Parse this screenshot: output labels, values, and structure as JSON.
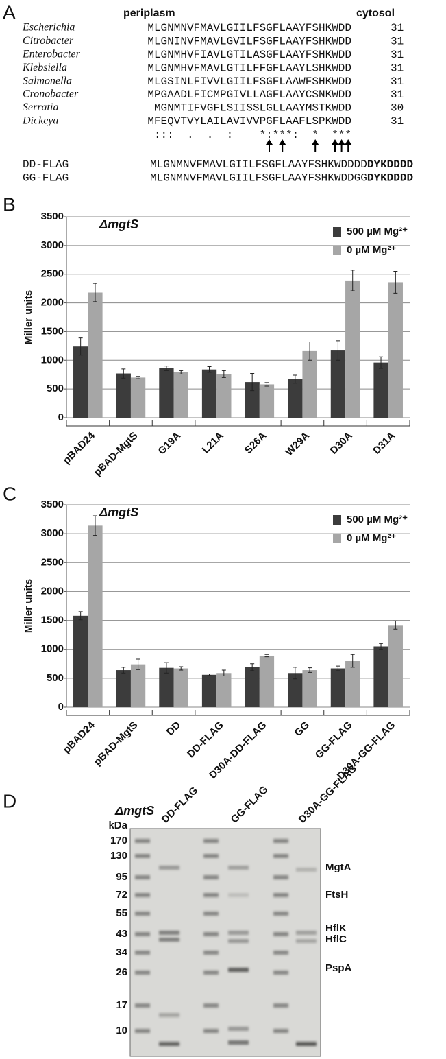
{
  "panel_a": {
    "label": "A",
    "periplasm": "periplasm",
    "cytosol": "cytosol",
    "rows": [
      {
        "organism": "Escherichia",
        "sequence": "MLGNMNVFMAVLGIILFSGFLAAYFSHKWDD",
        "length": 31
      },
      {
        "organism": "Citrobacter",
        "sequence": "MLGNINVFMAVLGVILFSGFLAAYFSHKWDD",
        "length": 31
      },
      {
        "organism": "Enterobacter",
        "sequence": "MLGNMHVFIAVLGTILASGFLAAYFSHKWDD",
        "length": 31
      },
      {
        "organism": "Klebsiella",
        "sequence": "MLGNMHVFMAVLGTILFFGFLAAYLSHKWDD",
        "length": 31
      },
      {
        "organism": "Salmonella",
        "sequence": "MLGSINLFIVVLGIILFSGFLAAWFSHKWDD",
        "length": 31
      },
      {
        "organism": "Cronobacter",
        "sequence": "MPGAADLFICMPGIVLLAGFLAAYCSNKWDD",
        "length": 31
      },
      {
        "organism": "Serratia",
        "sequence": "MGNMTIFVGFLSIISSLGLLAAYMSTKWDD",
        "length": 30
      },
      {
        "organism": "Dickeya",
        "sequence": "MFEQVTVYLAILAVIVVPGFLAAFLSPKWDD",
        "length": 31
      }
    ],
    "conservation": "   :::  .  .  :    *:***:  *  ***",
    "constructs": [
      {
        "name": "DD-FLAG",
        "sequence": "MLGNMNVFMAVLGIILFSGFLAAYFSHKWDDDD",
        "tag": "DYKDDDD"
      },
      {
        "name": "GG-FLAG",
        "sequence": "MLGNMNVFMAVLGIILFSGFLAAYFSHKWDDGG",
        "tag": "DYKDDDD"
      }
    ]
  },
  "chart_data": [
    {
      "type": "bar",
      "panel_label": "B",
      "title": "ΔmgtS",
      "y_label": "Miller units",
      "categories": [
        "pBAD24",
        "pBAD-MgtS",
        "G19A",
        "L21A",
        "S26A",
        "W29A",
        "D30A",
        "D31A"
      ],
      "series": [
        {
          "name": "500 µM Mg²⁺",
          "color": "#3c3c3c",
          "values": [
            1240,
            770,
            860,
            840,
            620,
            670,
            1170,
            960
          ],
          "errors": [
            150,
            80,
            40,
            50,
            150,
            70,
            170,
            100
          ]
        },
        {
          "name": "0 µM Mg²⁺",
          "color": "#a6a6a6",
          "values": [
            2180,
            700,
            790,
            760,
            580,
            1160,
            2390,
            2360
          ],
          "errors": [
            160,
            20,
            30,
            60,
            30,
            160,
            180,
            190
          ]
        }
      ],
      "ylim": [
        0,
        3500
      ],
      "yticks": [
        0,
        500,
        1000,
        1500,
        2000,
        2500,
        3000,
        3500
      ],
      "grid": true,
      "legend": "upper right"
    },
    {
      "type": "bar",
      "panel_label": "C",
      "title": "ΔmgtS",
      "y_label": "Miller units",
      "categories": [
        "pBAD24",
        "pBAD-MgtS",
        "DD",
        "DD-FLAG",
        "D30A-DD-FLAG",
        "GG",
        "GG-FLAG",
        "D30A-GG-FLAG"
      ],
      "series": [
        {
          "name": "500 µM Mg²⁺",
          "color": "#3c3c3c",
          "values": [
            1580,
            640,
            680,
            560,
            690,
            590,
            670,
            1050
          ],
          "errors": [
            70,
            50,
            90,
            15,
            60,
            100,
            40,
            50
          ]
        },
        {
          "name": "0 µM Mg²⁺",
          "color": "#a6a6a6",
          "values": [
            3140,
            740,
            670,
            590,
            890,
            640,
            800,
            1420
          ],
          "errors": [
            170,
            90,
            30,
            50,
            20,
            40,
            110,
            70
          ]
        }
      ],
      "ylim": [
        0,
        3500
      ],
      "yticks": [
        0,
        500,
        1000,
        1500,
        2000,
        2500,
        3000,
        3500
      ],
      "grid": true,
      "legend": "upper right"
    }
  ],
  "panel_d": {
    "label": "D",
    "title": "ΔmgtS",
    "lanes": [
      "DD-FLAG",
      "GG-FLAG",
      "D30A-GG-FLAG"
    ],
    "unit": "kDa",
    "markers": [
      "170",
      "130",
      "95",
      "72",
      "55",
      "43",
      "34",
      "26",
      "17",
      "10"
    ],
    "proteins": [
      "MgtA",
      "FtsH",
      "HflK",
      "HflC",
      "PspA"
    ]
  }
}
